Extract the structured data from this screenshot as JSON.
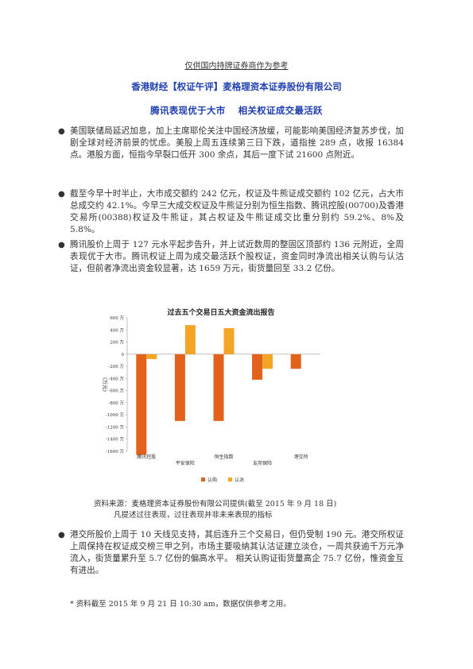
{
  "doc": {
    "disclaimer_top": "仅供国内持牌证券商作为参考",
    "company_title": "香港财经【权证午评】麦格理资本证券股份有限公司",
    "subtitle": "腾讯表现优于大市　 相关权证成交最活跃",
    "bullets": [
      "美国联储局延迟加息，加上主席耶伦关注中国经济放缓，可能影响美国经济复苏步伐，加剧全球对经济前景的忧虑。美股上周五连续第三日下跌，道指挫 289 点，收报 16384 点。港股方面，恒指今早裂口低开 300 余点，其后一度下试 21600 点附近。",
      "截至今早十时半止，大市成交额约 242 亿元，权证及牛熊证成交额约 102 亿元，占大市总成交约 42.1%。今早三大成交权证及牛熊证分别为恒生指数、腾讯控股(00700)及香港交易所(00388)权证及牛熊证，其占权证及牛熊证成交比重分别约 59.2%、8%及 5.8%。",
      "腾讯股价上周于 127 元水平起步告升，并上试近数周的整固区顶部约 136 元附近，全周表现优于大市。腾讯权证上周为成交最活跃个股权证，资金同时净流出相关认购与认沽证，但前者净流出资金较显著，达 1659 万元，街货量回至 33.2 亿份。",
      "港交所股价上周于 10 天线见支持，其后连升三个交易日，但仍受制 190 元。港交所权证上周保持在权证成交榜三甲之列，市场主要吸纳其认沽证建立淡仓，一周共获逾千万元净流入，街货量累升至 5.7 亿份的偏高水平。 相关认购证街货量高企 75.7 亿份，惟资金互有进出。"
    ],
    "source_line1": "资料来源：麦格理资本证券股份有限公司提供(截至 2015 年 9 月 18 日)",
    "source_line2": "凡提述过往表现，过往表现并非未来表现的指标",
    "footnote": "* 资料截至 2015 年 9 月 21 日 10:30 am，数据仅供参考之用。"
  },
  "chart_data": {
    "type": "bar",
    "title": "过去五个交易日五大资金流出报告",
    "ylabel": "(万元)",
    "ylim": [
      -1600,
      600
    ],
    "yticks": [
      -1600,
      -1400,
      -1200,
      -1000,
      -800,
      -600,
      -400,
      -200,
      0,
      200,
      400,
      600
    ],
    "ytick_labels": [
      "-1600 万",
      "-1400 万",
      "-1200 万",
      "-1000 万",
      "-800 万",
      "-600 万",
      "-400 万",
      "-200 万",
      "0",
      "200 万",
      "400 万",
      "600 万"
    ],
    "categories": [
      "腾讯控股",
      "平安保险",
      "恒生指数",
      "友邦保险",
      "港交所"
    ],
    "category_labels_upper": [
      "腾讯控股",
      "",
      "恒生指数",
      "",
      "港交所"
    ],
    "category_labels_lower": [
      "",
      "平安保险",
      "",
      "友邦保险",
      ""
    ],
    "series": [
      {
        "name": "认购",
        "color": "#e2611b",
        "values": [
          -1659,
          -1100,
          -1100,
          -420,
          -240
        ]
      },
      {
        "name": "认沽",
        "color": "#f4a526",
        "values": [
          -80,
          480,
          430,
          -240,
          0
        ]
      }
    ]
  }
}
